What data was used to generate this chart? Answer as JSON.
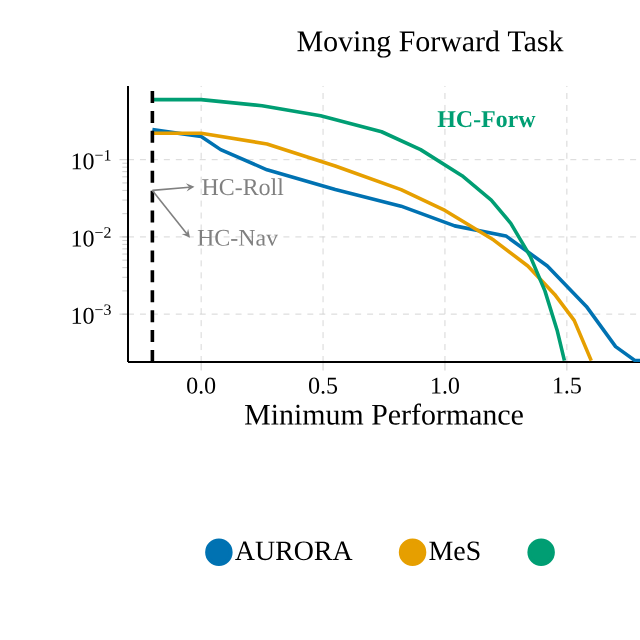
{
  "chart_data": {
    "type": "line",
    "title": "Moving Forward Task",
    "xlabel": "Minimum Performance",
    "log": "y",
    "grid": true,
    "legend": "bottom",
    "marker": "none",
    "line_style": "solid",
    "xlim": [
      -0.3,
      1.8
    ],
    "ylim": [
      0.00024,
      0.9
    ],
    "xticks": [
      {
        "value": 0,
        "label": "0.0"
      },
      {
        "value": 0.5,
        "label": "0.5"
      },
      {
        "value": 1,
        "label": "1.0"
      },
      {
        "value": 1.5,
        "label": "1.5"
      }
    ],
    "yticks": [
      {
        "value": 0.001,
        "label": "10$^{−3}$"
      },
      {
        "value": 0.01,
        "label": "10$^{−2}$"
      },
      {
        "value": 0.1,
        "label": "10$^{−1}$"
      }
    ],
    "series": [
      {
        "name": "AURORA",
        "color": "#0072b2",
        "x": [
          -0.2,
          0,
          0.08,
          0.27,
          0.55,
          0.82,
          1.04,
          1.25,
          1.42,
          1.58,
          1.7,
          1.78,
          1.8
        ],
        "values": [
          0.245,
          0.2,
          0.135,
          0.074,
          0.041,
          0.025,
          0.0139,
          0.0103,
          0.0042,
          0.00126,
          0.00038,
          0.00025,
          0.00025
        ]
      },
      {
        "name": "MeS",
        "color": "#e69f00",
        "x": [
          -0.2,
          0,
          0.27,
          0.55,
          0.82,
          1.0,
          1.2,
          1.34,
          1.45,
          1.53,
          1.6
        ],
        "values": [
          0.22,
          0.22,
          0.16,
          0.083,
          0.041,
          0.022,
          0.0091,
          0.0042,
          0.0018,
          0.00083,
          0.00025
        ]
      },
      {
        "color": "#009e73",
        "x": [
          -0.2,
          0,
          0.25,
          0.49,
          0.74,
          0.9,
          1.07,
          1.19,
          1.27,
          1.35,
          1.41,
          1.46,
          1.49
        ],
        "values": [
          0.6,
          0.6,
          0.5,
          0.37,
          0.23,
          0.135,
          0.062,
          0.03,
          0.015,
          0.0056,
          0.002,
          0.00062,
          0.00025
        ]
      }
    ],
    "ref_lines": [
      {
        "axis": "x",
        "value": -0.2,
        "color": "#000000",
        "line_style": "dashed"
      }
    ],
    "annotations": [
      "HC-Forw",
      {
        "text": "HC-Roll",
        "x": -0.2,
        "y": 0.04
      },
      {
        "text": "HC-Nav",
        "x": -0.2,
        "y": 0.04
      }
    ]
  }
}
